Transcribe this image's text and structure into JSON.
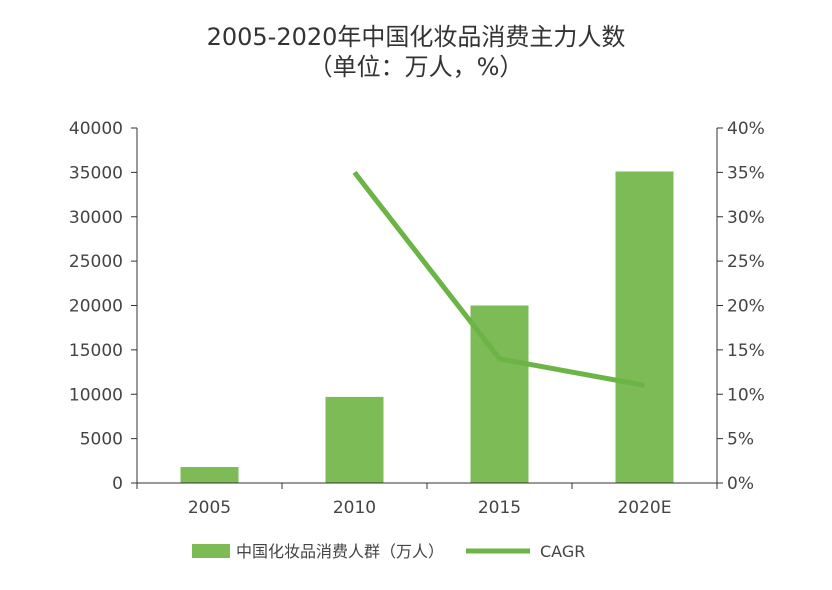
{
  "colors": {
    "bar": "#7dbb57",
    "line": "#6bb446",
    "axis": "#333333",
    "text": "#333333"
  },
  "chart_data": {
    "type": "bar",
    "title": "2005-2020年中国化妆品消费主力人数",
    "subtitle": "（单位：万人，%）",
    "categories": [
      "2005",
      "2010",
      "2015",
      "2020E"
    ],
    "series": [
      {
        "name": "中国化妆品消费人群（万人）",
        "type": "bar",
        "axis": "left",
        "values": [
          1800,
          9700,
          20000,
          35100
        ]
      },
      {
        "name": "CAGR",
        "type": "line",
        "axis": "right",
        "values": [
          null,
          35,
          14,
          11
        ]
      }
    ],
    "y_left": {
      "range": [
        0,
        40000
      ],
      "ticks": [
        "0",
        "5000",
        "10000",
        "15000",
        "20000",
        "25000",
        "30000",
        "35000",
        "40000"
      ]
    },
    "y_right": {
      "range": [
        0,
        40
      ],
      "ticks": [
        "0%",
        "5%",
        "10%",
        "15%",
        "20%",
        "25%",
        "30%",
        "35%",
        "40%"
      ]
    },
    "grid": false,
    "legend": "bottom"
  }
}
